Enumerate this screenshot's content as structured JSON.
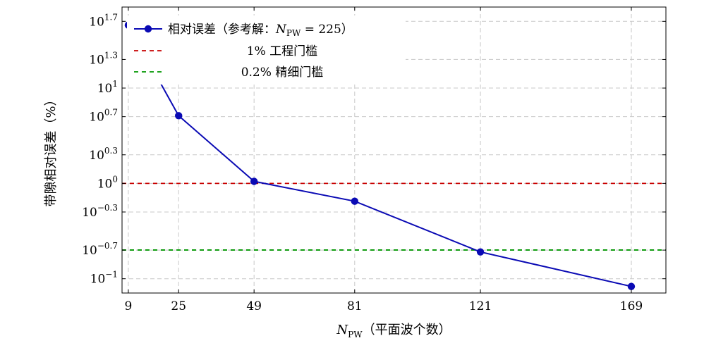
{
  "chart_data": {
    "type": "line",
    "title": "",
    "xlabel": "N_PW（平面波个数）",
    "xlabel_main": "N",
    "xlabel_sub": "PW",
    "xlabel_rest": "（平面波个数）",
    "ylabel": "带隙相对误差（%）",
    "y_scale": "log",
    "x_ticks": [
      9,
      25,
      49,
      81,
      121,
      169
    ],
    "x_tick_labels": [
      "9",
      "25",
      "49",
      "81",
      "121",
      "169"
    ],
    "xlim": [
      7,
      180
    ],
    "y_ticks": [
      {
        "base": "10",
        "exp": "−1"
      },
      {
        "base": "10",
        "exp": "−0.7"
      },
      {
        "base": "10",
        "exp": "−0.3"
      },
      {
        "base": "10",
        "exp": "0"
      },
      {
        "base": "10",
        "exp": "0.3"
      },
      {
        "base": "10",
        "exp": "0.7"
      },
      {
        "base": "10",
        "exp": "1"
      },
      {
        "base": "10",
        "exp": "1.3"
      },
      {
        "base": "10",
        "exp": "1.7"
      }
    ],
    "ylim_log10": [
      -1.15,
      1.85
    ],
    "grid": true,
    "legend_position": "top-left",
    "series": [
      {
        "name": "相对误差（参考解：N_PW = 225）",
        "legend_parts": [
          "相对误差（参考解：",
          "N",
          "PW",
          " = 225）"
        ],
        "color": "#0a0ab4",
        "x": [
          9,
          25,
          49,
          81,
          121,
          169
        ],
        "y": [
          45.7,
          5.13,
          1.05,
          0.65,
          0.191,
          0.083
        ]
      }
    ],
    "thresholds": [
      {
        "name": "1% 工程门槛",
        "value": 1.0,
        "color": "#c80000"
      },
      {
        "name": "0.2% 精细门槛",
        "value": 0.2,
        "color": "#009600"
      }
    ]
  }
}
